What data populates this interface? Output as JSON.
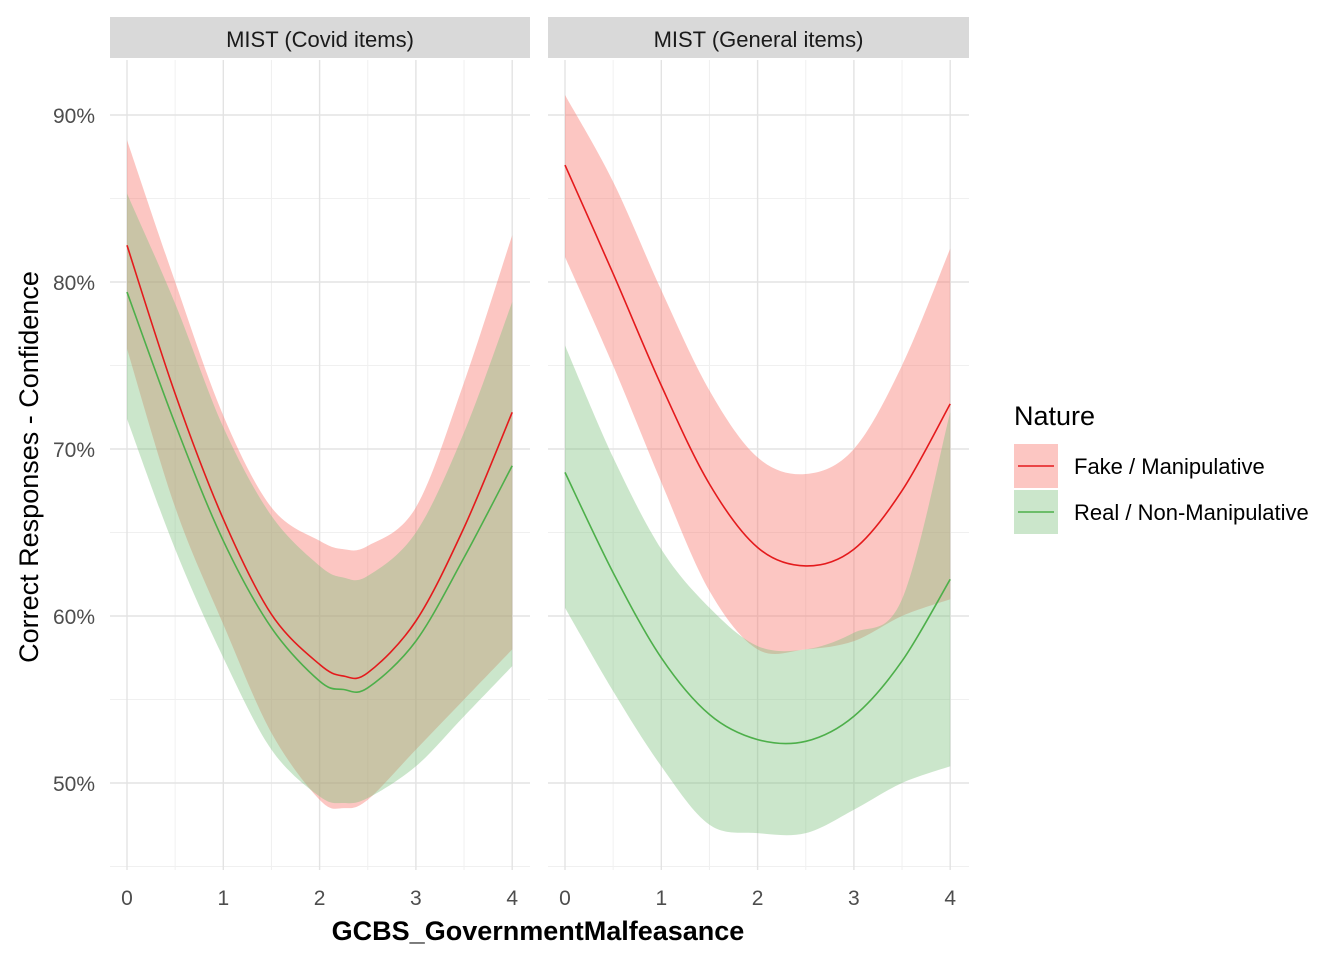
{
  "chart_data": {
    "type": "line",
    "xlabel": "GCBS_GovernmentMalfeasance",
    "ylabel": "Correct Responses - Confidence",
    "xlim": [
      -0.1,
      4.1
    ],
    "ylim": [
      0.45,
      0.93
    ],
    "x_ticks": [
      0,
      1,
      2,
      3,
      4
    ],
    "x_tick_labels": [
      "0",
      "1",
      "2",
      "3",
      "4"
    ],
    "y_ticks": [
      0.5,
      0.6,
      0.7,
      0.8,
      0.9
    ],
    "y_tick_labels": [
      "50%",
      "60%",
      "70%",
      "80%",
      "90%"
    ],
    "grid": true,
    "legend": {
      "title": "Nature",
      "position": "right",
      "entries": [
        "Fake / Manipulative",
        "Real / Non-Manipulative"
      ]
    },
    "colors": {
      "Fake / Manipulative": "#e41a1c",
      "Real / Non-Manipulative": "#4daf4a"
    },
    "panels": [
      {
        "title": "MIST (Covid items)",
        "x": [
          0,
          0.5,
          1,
          1.5,
          2,
          2.25,
          2.5,
          3,
          3.5,
          4
        ],
        "series": [
          {
            "name": "Fake / Manipulative",
            "values": [
              0.822,
              0.733,
              0.658,
              0.601,
              0.571,
              0.564,
              0.566,
              0.597,
              0.653,
              0.722
            ],
            "lower": [
              0.76,
              0.665,
              0.595,
              0.53,
              0.49,
              0.485,
              0.49,
              0.52,
              0.55,
              0.58
            ],
            "upper": [
              0.885,
              0.8,
              0.72,
              0.665,
              0.645,
              0.64,
              0.642,
              0.665,
              0.74,
              0.828
            ]
          },
          {
            "name": "Real / Non-Manipulative",
            "values": [
              0.794,
              0.715,
              0.645,
              0.593,
              0.561,
              0.556,
              0.557,
              0.585,
              0.635,
              0.69
            ],
            "lower": [
              0.718,
              0.64,
              0.575,
              0.52,
              0.492,
              0.488,
              0.491,
              0.51,
              0.54,
              0.57
            ],
            "upper": [
              0.853,
              0.787,
              0.713,
              0.66,
              0.63,
              0.623,
              0.624,
              0.65,
              0.71,
              0.788
            ]
          }
        ]
      },
      {
        "title": "MIST (General items)",
        "x": [
          0,
          0.5,
          1,
          1.5,
          2,
          2.5,
          3,
          3.5,
          4
        ],
        "series": [
          {
            "name": "Fake / Manipulative",
            "values": [
              0.87,
              0.805,
              0.738,
              0.679,
              0.641,
              0.63,
              0.64,
              0.675,
              0.727
            ],
            "lower": [
              0.815,
              0.75,
              0.68,
              0.615,
              0.58,
              0.58,
              0.585,
              0.6,
              0.61
            ],
            "upper": [
              0.912,
              0.86,
              0.795,
              0.735,
              0.695,
              0.685,
              0.7,
              0.75,
              0.82
            ]
          },
          {
            "name": "Real / Non-Manipulative",
            "values": [
              0.686,
              0.626,
              0.575,
              0.541,
              0.526,
              0.525,
              0.54,
              0.573,
              0.622
            ],
            "lower": [
              0.605,
              0.555,
              0.51,
              0.475,
              0.47,
              0.47,
              0.484,
              0.5,
              0.51
            ],
            "upper": [
              0.762,
              0.695,
              0.64,
              0.605,
              0.582,
              0.58,
              0.59,
              0.61,
              0.722
            ]
          }
        ]
      }
    ]
  }
}
